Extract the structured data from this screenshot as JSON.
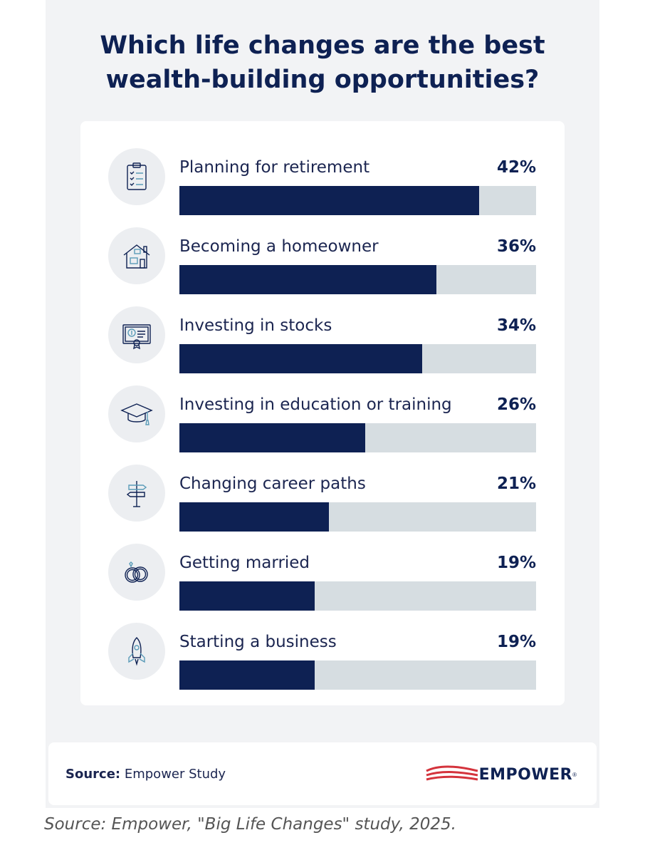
{
  "title": "Which life changes are the best wealth-building opportunities?",
  "title_line1": "Which life changes are the best",
  "title_line2": "wealth-building opportunities?",
  "chart_data": {
    "type": "bar",
    "orientation": "horizontal",
    "categories": [
      "Planning for retirement",
      "Becoming a homeowner",
      "Investing in stocks",
      "Investing in education or training",
      "Changing career paths",
      "Getting married",
      "Starting a business"
    ],
    "values": [
      42,
      36,
      34,
      26,
      21,
      19,
      19
    ],
    "value_labels": [
      "42%",
      "36%",
      "34%",
      "26%",
      "21%",
      "19%",
      "19%"
    ],
    "xlim": [
      0,
      50
    ],
    "grid": false,
    "legend": "none"
  },
  "rows": [
    {
      "label": "Planning for retirement",
      "pct": "42%",
      "icon": "clipboard-icon"
    },
    {
      "label": "Becoming a homeowner",
      "pct": "36%",
      "icon": "house-icon"
    },
    {
      "label": "Investing in stocks",
      "pct": "34%",
      "icon": "certificate-icon"
    },
    {
      "label": "Investing in education or training",
      "pct": "26%",
      "icon": "graduation-cap-icon"
    },
    {
      "label": "Changing career paths",
      "pct": "21%",
      "icon": "signpost-icon"
    },
    {
      "label": "Getting married",
      "pct": "19%",
      "icon": "rings-icon"
    },
    {
      "label": "Starting a business",
      "pct": "19%",
      "icon": "rocket-icon"
    }
  ],
  "footer": {
    "source_label": "Source:",
    "source_value": "Empower Study",
    "logo_text": "EMPOWER",
    "logo_mark": "®"
  },
  "caption": "Source: Empower, \"Big Life Changes\" study, 2025.",
  "colors": {
    "bar_fill": "#0e2153",
    "bar_track": "#d6dde1",
    "brand_red": "#d4333c",
    "title": "#0e2153"
  }
}
